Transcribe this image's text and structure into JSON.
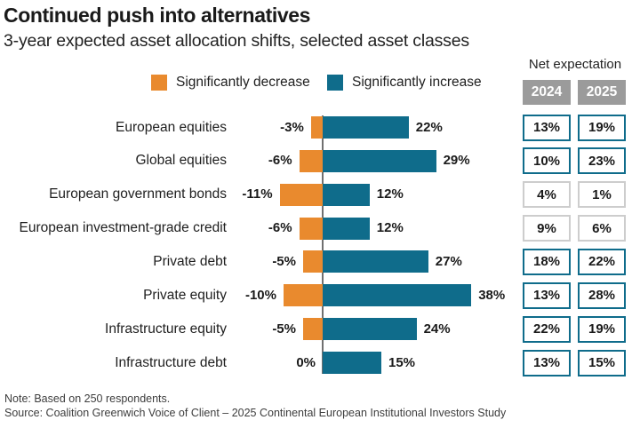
{
  "title": "Continued push into alternatives",
  "subtitle": "3-year expected asset allocation shifts, selected asset classes",
  "legend": {
    "decrease_label": "Significantly decrease",
    "increase_label": "Significantly increase"
  },
  "net_expectation_header": {
    "label": "Net expectation",
    "columns": [
      "2024",
      "2025"
    ]
  },
  "colors": {
    "decrease": "#e98a2e",
    "increase": "#0f6c8b",
    "column_header_gray": "#9b9b9b",
    "muted_box_border": "#cdcdcd",
    "axis_line": "#707070"
  },
  "chart_data": {
    "type": "bar",
    "orientation": "horizontal",
    "diverging": true,
    "title": "Continued push into alternatives",
    "subtitle": "3-year expected asset allocation shifts, selected asset classes",
    "xlabel": "",
    "ylabel": "",
    "axis_zero": 0,
    "legend_position": "top",
    "categories": [
      "European equities",
      "Global equities",
      "European government bonds",
      "European investment-grade credit",
      "Private debt",
      "Private equity",
      "Infrastructure equity",
      "Infrastructure debt"
    ],
    "series": [
      {
        "name": "Significantly decrease",
        "color": "#e98a2e",
        "values": [
          -3,
          -6,
          -11,
          -6,
          -5,
          -10,
          -5,
          0
        ]
      },
      {
        "name": "Significantly increase",
        "color": "#0f6c8b",
        "values": [
          22,
          29,
          12,
          12,
          27,
          38,
          24,
          15
        ]
      }
    ],
    "net_expectation": {
      "label": "Net expectation",
      "columns": [
        "2024",
        "2025"
      ],
      "values_2024": [
        13,
        10,
        4,
        9,
        18,
        13,
        22,
        13
      ],
      "values_2025": [
        19,
        23,
        1,
        6,
        22,
        28,
        19,
        15
      ],
      "emphasized": [
        true,
        true,
        false,
        false,
        true,
        true,
        true,
        true
      ]
    },
    "display": {
      "decrease": [
        "-3%",
        "-6%",
        "-11%",
        "-6%",
        "-5%",
        "-10%",
        "-5%",
        "0%"
      ],
      "increase": [
        "22%",
        "29%",
        "12%",
        "12%",
        "27%",
        "38%",
        "24%",
        "15%"
      ],
      "net_2024": [
        "13%",
        "10%",
        "4%",
        "9%",
        "18%",
        "13%",
        "22%",
        "13%"
      ],
      "net_2025": [
        "19%",
        "23%",
        "1%",
        "6%",
        "22%",
        "28%",
        "19%",
        "15%"
      ]
    }
  },
  "footer": {
    "note": "Note: Based on 250 respondents.",
    "source": "Source:  Coalition Greenwich Voice of Client – 2025 Continental European Institutional Investors Study"
  }
}
